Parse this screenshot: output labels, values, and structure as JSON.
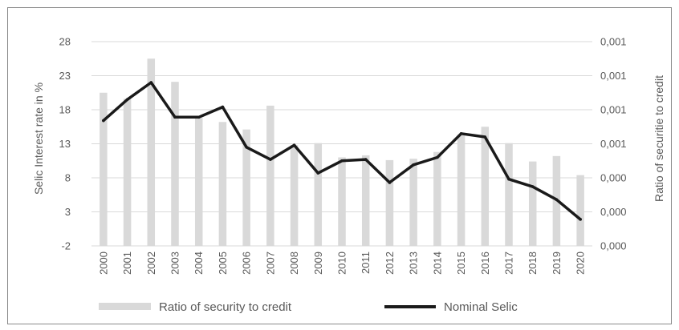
{
  "chart_data": {
    "type": "bar",
    "categories": [
      "2000",
      "2001",
      "2002",
      "2003",
      "2004",
      "2005",
      "2006",
      "2007",
      "2008",
      "2009",
      "2010",
      "2011",
      "2012",
      "2013",
      "2014",
      "2015",
      "2016",
      "2017",
      "2018",
      "2019",
      "2020"
    ],
    "series": [
      {
        "name": "Ratio of security to credit",
        "type": "bar",
        "axis": "right",
        "color": "#d9d9d9",
        "values": [
          20.5,
          19.6,
          25.5,
          22.1,
          16.8,
          16.2,
          15.1,
          18.6,
          12.8,
          13.1,
          11.0,
          11.3,
          10.6,
          10.8,
          11.8,
          14.3,
          15.5,
          13.1,
          10.4,
          11.2,
          8.4
        ]
      },
      {
        "name": "Nominal Selic",
        "type": "line",
        "axis": "left",
        "color": "#1a1a1a",
        "values": [
          16.4,
          19.5,
          22.0,
          16.9,
          16.9,
          18.4,
          12.5,
          10.7,
          12.8,
          8.7,
          10.5,
          10.7,
          7.3,
          9.9,
          11.0,
          14.5,
          14.0,
          7.8,
          6.7,
          4.8,
          1.9
        ]
      }
    ],
    "ylabel": "Selic Interest rate in %",
    "y2label": "Ratio of securitie to credit",
    "ylim": [
      -2,
      28
    ],
    "yticks": [
      "28",
      "23",
      "18",
      "13",
      "8",
      "3",
      "-2"
    ],
    "y2ticks": [
      "0,001",
      "0,001",
      "0,001",
      "0,001",
      "0,000",
      "0,000",
      "0,000"
    ],
    "grid": "horizontal",
    "legend": "bottom"
  }
}
